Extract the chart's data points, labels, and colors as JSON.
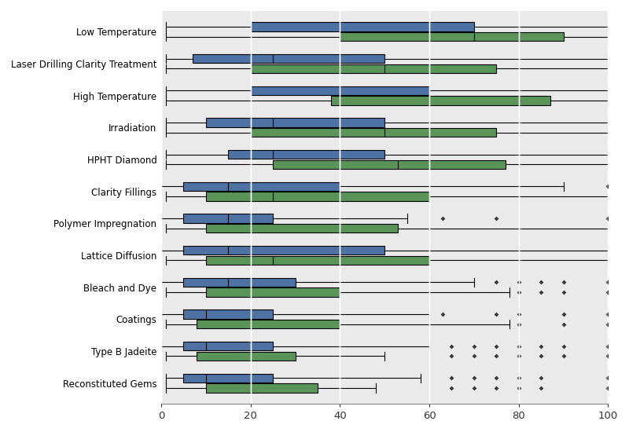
{
  "categories": [
    "Low Temperature",
    "Laser Drilling Clarity Treatment",
    "High Temperature",
    "Irradiation",
    "HPHT Diamond",
    "Clarity Fillings",
    "Polymer Impregnation",
    "Lattice Diffusion",
    "Bleach and Dye",
    "Coatings",
    "Type B Jadeite",
    "Reconstituted Gems"
  ],
  "blue_boxes": [
    {
      "min": 1,
      "q1": 20,
      "median": 40,
      "q3": 70,
      "max": 100,
      "fliers": []
    },
    {
      "min": 1,
      "q1": 7,
      "median": 25,
      "q3": 50,
      "max": 100,
      "fliers": []
    },
    {
      "min": 1,
      "q1": 20,
      "median": 40,
      "q3": 60,
      "max": 100,
      "fliers": []
    },
    {
      "min": 1,
      "q1": 10,
      "median": 25,
      "q3": 50,
      "max": 100,
      "fliers": []
    },
    {
      "min": 1,
      "q1": 15,
      "median": 25,
      "q3": 50,
      "max": 100,
      "fliers": []
    },
    {
      "min": 0,
      "q1": 5,
      "median": 15,
      "q3": 40,
      "max": 90,
      "fliers": [
        100
      ]
    },
    {
      "min": 0,
      "q1": 5,
      "median": 15,
      "q3": 25,
      "max": 55,
      "fliers": [
        63,
        75,
        100
      ]
    },
    {
      "min": 0,
      "q1": 5,
      "median": 15,
      "q3": 50,
      "max": 100,
      "fliers": []
    },
    {
      "min": 0,
      "q1": 5,
      "median": 15,
      "q3": 30,
      "max": 70,
      "fliers": [
        75,
        80,
        85,
        90,
        100
      ]
    },
    {
      "min": 0,
      "q1": 5,
      "median": 10,
      "q3": 25,
      "max": 60,
      "fliers": [
        63,
        75,
        80,
        90,
        100
      ]
    },
    {
      "min": 0,
      "q1": 5,
      "median": 10,
      "q3": 25,
      "max": 60,
      "fliers": [
        65,
        70,
        75,
        80,
        85,
        90,
        100
      ]
    },
    {
      "min": 1,
      "q1": 5,
      "median": 10,
      "q3": 25,
      "max": 58,
      "fliers": [
        65,
        70,
        75,
        80,
        85,
        100
      ]
    }
  ],
  "green_boxes": [
    {
      "min": 1,
      "q1": 40,
      "median": 70,
      "q3": 90,
      "max": 100,
      "fliers": []
    },
    {
      "min": 1,
      "q1": 20,
      "median": 50,
      "q3": 75,
      "max": 100,
      "fliers": []
    },
    {
      "min": 1,
      "q1": 38,
      "median": 60,
      "q3": 87,
      "max": 100,
      "fliers": []
    },
    {
      "min": 1,
      "q1": 20,
      "median": 50,
      "q3": 75,
      "max": 100,
      "fliers": []
    },
    {
      "min": 1,
      "q1": 25,
      "median": 53,
      "q3": 77,
      "max": 100,
      "fliers": []
    },
    {
      "min": 1,
      "q1": 10,
      "median": 25,
      "q3": 60,
      "max": 100,
      "fliers": []
    },
    {
      "min": 1,
      "q1": 10,
      "median": 20,
      "q3": 53,
      "max": 100,
      "fliers": []
    },
    {
      "min": 1,
      "q1": 10,
      "median": 25,
      "q3": 60,
      "max": 100,
      "fliers": []
    },
    {
      "min": 1,
      "q1": 10,
      "median": 20,
      "q3": 40,
      "max": 78,
      "fliers": [
        80,
        85,
        90,
        100
      ]
    },
    {
      "min": 1,
      "q1": 8,
      "median": 20,
      "q3": 40,
      "max": 78,
      "fliers": [
        80,
        90,
        100
      ]
    },
    {
      "min": 1,
      "q1": 8,
      "median": 20,
      "q3": 30,
      "max": 50,
      "fliers": [
        65,
        70,
        75,
        80,
        85,
        90,
        100
      ]
    },
    {
      "min": 1,
      "q1": 10,
      "median": 20,
      "q3": 35,
      "max": 48,
      "fliers": [
        65,
        70,
        75,
        80,
        85,
        100
      ]
    }
  ],
  "blue_color": "#4e72a4",
  "green_color": "#5a9459",
  "flier_color": "#3a3a3a",
  "figure_bg": "#ffffff",
  "axes_bg": "#eaeaea",
  "grid_color": "#ffffff",
  "xlim": [
    0,
    100
  ],
  "xticks": [
    0,
    20,
    40,
    60,
    80,
    100
  ]
}
